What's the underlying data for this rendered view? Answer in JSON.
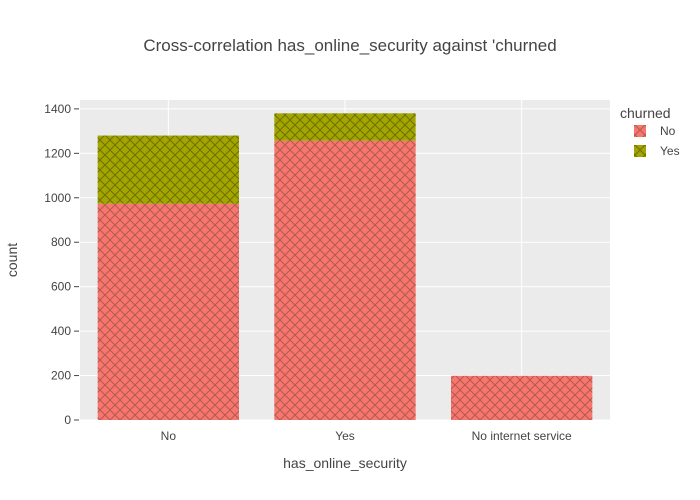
{
  "chart_data": {
    "type": "bar",
    "stacked": true,
    "title": "Cross-correlation has_online_security against 'churned",
    "xlabel": "has_online_security",
    "ylabel": "count",
    "categories": [
      "No",
      "Yes",
      "No internet service"
    ],
    "ylim": [
      0,
      1440
    ],
    "yticks": [
      0,
      200,
      400,
      600,
      800,
      1000,
      1200,
      1400
    ],
    "grid": true,
    "legend": {
      "title": "churned",
      "position": "top-right"
    },
    "series": [
      {
        "name": "No",
        "values": [
          973,
          1257,
          199
        ],
        "color": "#f8766d",
        "pattern": "crosshatch"
      },
      {
        "name": "Yes",
        "values": [
          307,
          123,
          0
        ],
        "color": "#a3a500",
        "pattern": "crosshatch"
      }
    ]
  }
}
